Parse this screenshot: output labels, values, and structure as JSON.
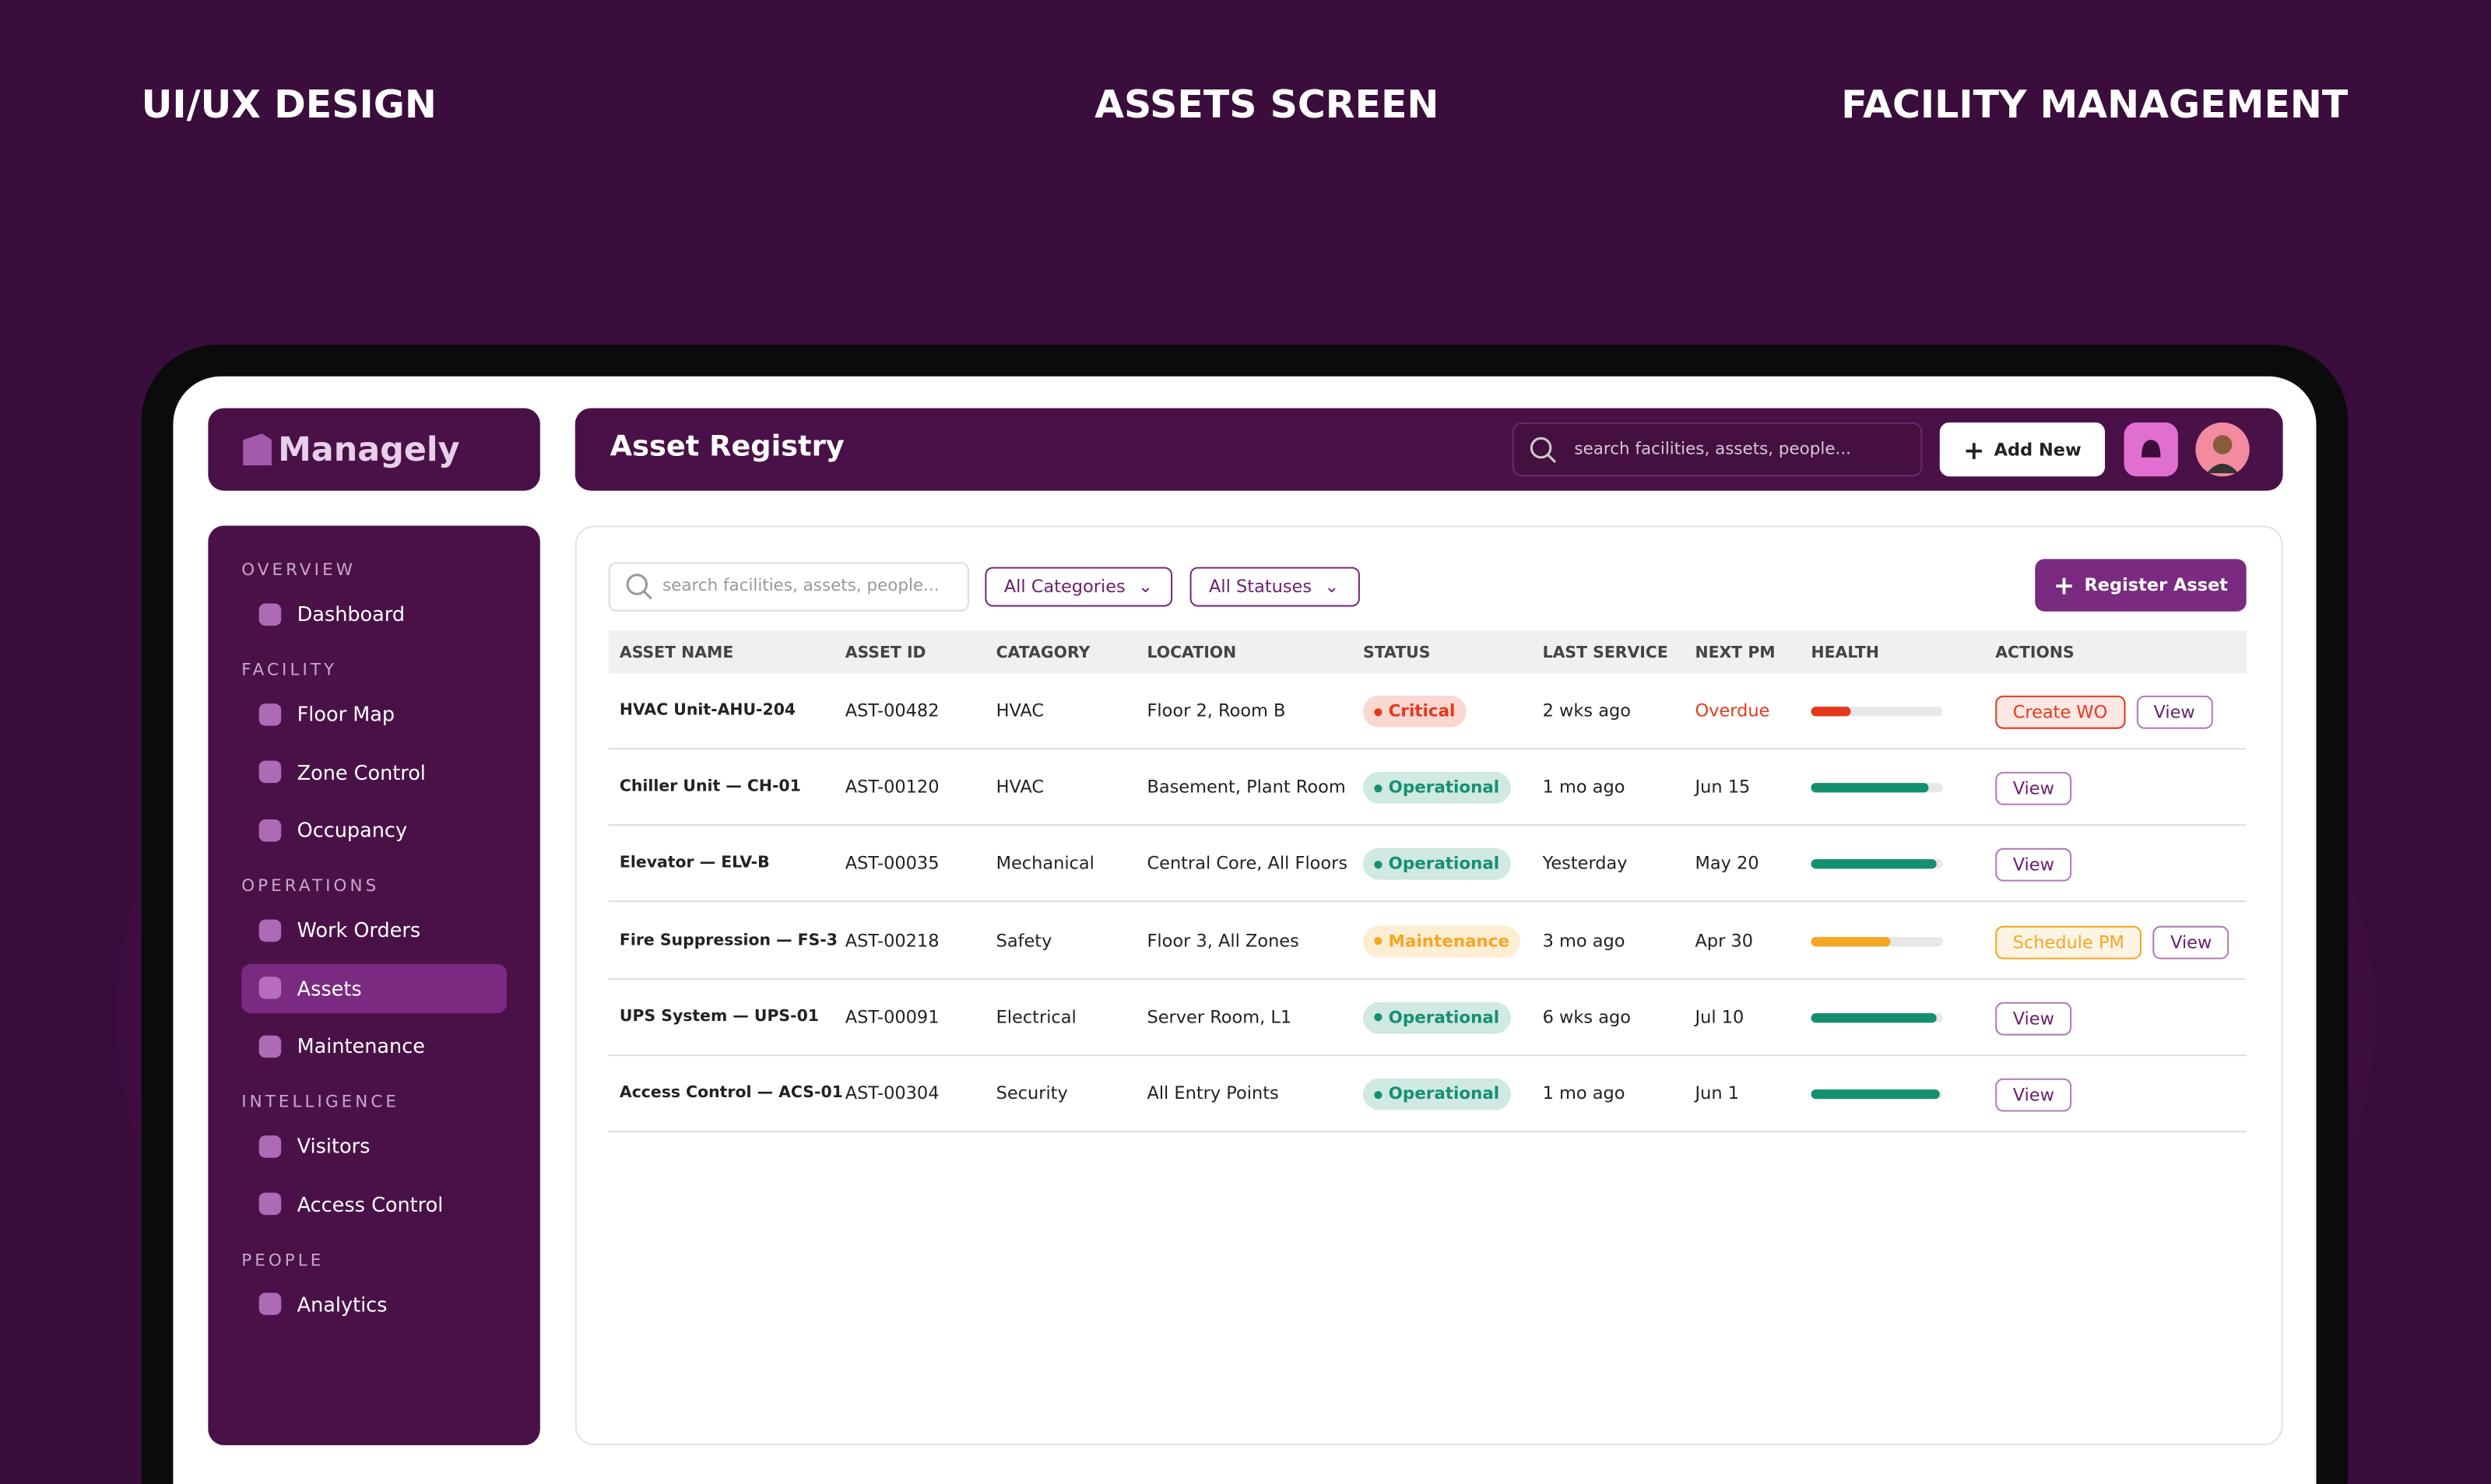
{
  "header": {
    "left": "UI/UX DESIGN",
    "center": "ASSETS SCREEN",
    "right": "FACILITY MANAGEMENT"
  },
  "brand": "Managely",
  "sidebar": {
    "active": "Assets",
    "sections": [
      {
        "title": "OVERVIEW",
        "items": [
          "Dashboard"
        ]
      },
      {
        "title": "FACILITY",
        "items": [
          "Floor Map",
          "Zone Control",
          "Occupancy"
        ]
      },
      {
        "title": "OPERATIONS",
        "items": [
          "Work Orders",
          "Assets",
          "Maintenance"
        ]
      },
      {
        "title": "INTELLIGENCE",
        "items": [
          "Visitors",
          "Access Control"
        ]
      },
      {
        "title": "PEOPLE",
        "items": [
          "Analytics"
        ]
      }
    ]
  },
  "topbar": {
    "title": "Asset Registry",
    "search": "search facilities, assets, people...",
    "add": "Add New"
  },
  "filters": {
    "search": "search facilities, assets, people...",
    "category": "All Categories",
    "status": "All Statuses",
    "register": "Register Asset"
  },
  "table": {
    "columns": [
      "ASSET NAME",
      "ASSET ID",
      "CATAGORY",
      "LOCATION",
      "STATUS",
      "LAST SERVICE",
      "NEXT PM",
      "HEALTH",
      "ACTIONS"
    ],
    "rows": [
      {
        "name": "HVAC Unit-AHU-204",
        "id": "AST-00482",
        "category": "HVAC",
        "location": "Floor 2, Room B",
        "status": "Critical",
        "last_service": "2 wks ago",
        "next_pm": "Overdue",
        "next_pm_color": "#e5391a",
        "health": 30,
        "color": "#e5391a",
        "actions": [
          "Create WO",
          "View"
        ]
      },
      {
        "name": "Chiller Unit — CH-01",
        "id": "AST-00120",
        "category": "HVAC",
        "location": "Basement, Plant Room",
        "status": "Operational",
        "last_service": "1 mo ago",
        "next_pm": "Jun 15",
        "health": 89,
        "color": "#14906f",
        "actions": [
          "View"
        ]
      },
      {
        "name": "Elevator — ELV-B",
        "id": "AST-00035",
        "category": "Mechanical",
        "location": "Central Core, All Floors",
        "status": "Operational",
        "last_service": "Yesterday",
        "next_pm": "May 20",
        "health": 95,
        "color": "#14906f",
        "actions": [
          "View"
        ]
      },
      {
        "name": "Fire Suppression — FS-3",
        "id": "AST-00218",
        "category": "Safety",
        "location": "Floor 3, All Zones",
        "status": "Maintenance",
        "last_service": "3 mo ago",
        "next_pm": "Apr 30",
        "health": 60,
        "color": "#f5a623",
        "actions": [
          "Schedule PM",
          "View"
        ]
      },
      {
        "name": "UPS System — UPS-01",
        "id": "AST-00091",
        "category": "Electrical",
        "location": "Server Room, L1",
        "status": "Operational",
        "last_service": "6 wks ago",
        "next_pm": "Jul 10",
        "health": 95,
        "color": "#14906f",
        "actions": [
          "View"
        ]
      },
      {
        "name": "Access Control — ACS-01",
        "id": "AST-00304",
        "category": "Security",
        "location": "All Entry Points",
        "status": "Operational",
        "last_service": "1 mo ago",
        "next_pm": "Jun 1",
        "health": 98,
        "color": "#14906f",
        "actions": [
          "View"
        ]
      }
    ]
  }
}
